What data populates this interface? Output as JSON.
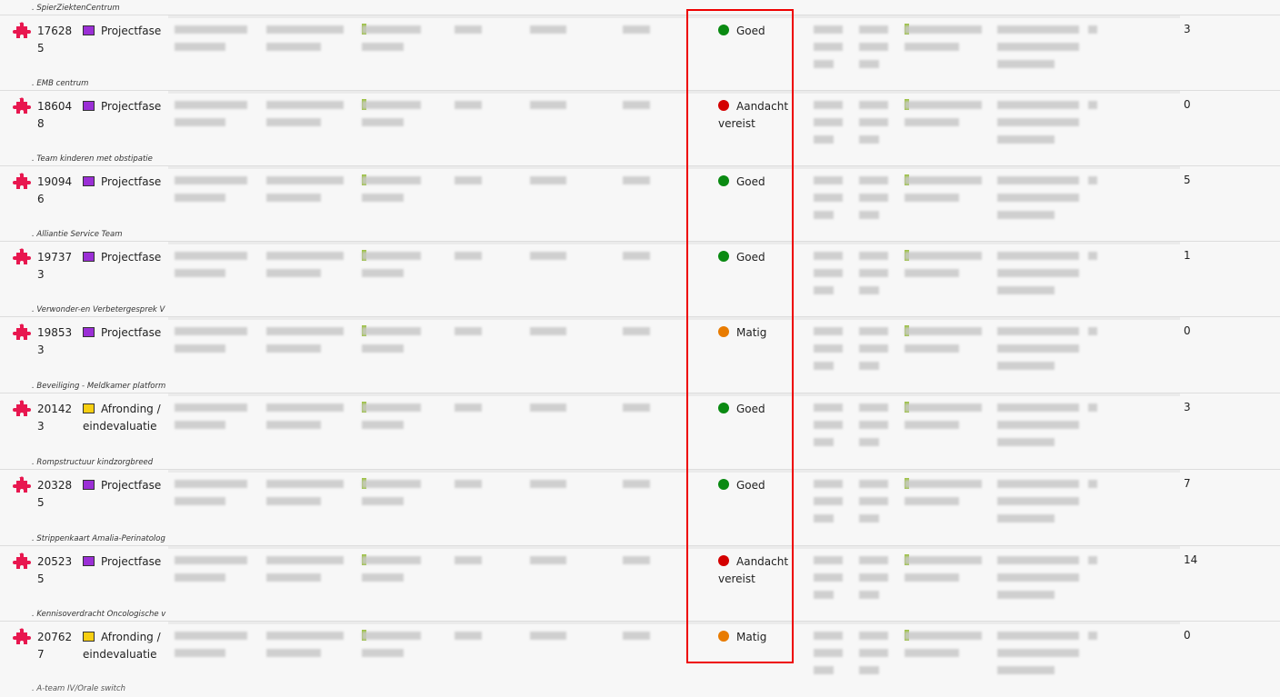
{
  "colors": {
    "accent": "#e8174f",
    "projectfase": "#9b2fd6",
    "afronding": "#f7cf12",
    "goed": "#0a8a12",
    "aandacht": "#d40000",
    "matig": "#e87b00",
    "highlight": "#e00000"
  },
  "rows": [
    {
      "group": ". SpierZiektenCentrum",
      "id": "176285",
      "phase": "Projectfase",
      "phase_color": "projectfase",
      "status": "Goed",
      "status_color": "goed",
      "count": "3"
    },
    {
      "group": ". EMB centrum",
      "id": "186048",
      "phase": "Projectfase",
      "phase_color": "projectfase",
      "status": "Aandacht vereist",
      "status_color": "aandacht",
      "count": "0"
    },
    {
      "group": ". Team kinderen met obstipatie",
      "id": "190946",
      "phase": "Projectfase",
      "phase_color": "projectfase",
      "status": "Goed",
      "status_color": "goed",
      "count": "5"
    },
    {
      "group": ". Alliantie Service Team",
      "id": "197373",
      "phase": "Projectfase",
      "phase_color": "projectfase",
      "status": "Goed",
      "status_color": "goed",
      "count": "1"
    },
    {
      "group": ". Verwonder-en Verbetergesprek V",
      "id": "198533",
      "phase": "Projectfase",
      "phase_color": "projectfase",
      "status": "Matig",
      "status_color": "matig",
      "count": "0"
    },
    {
      "group": ". Beveiliging - Meldkamer platform",
      "id": "201423",
      "phase": "Afronding / eindevaluatie",
      "phase_color": "afronding",
      "status": "Goed",
      "status_color": "goed",
      "count": "3"
    },
    {
      "group": ". Rompstructuur kindzorgbreed",
      "id": "203285",
      "phase": "Projectfase",
      "phase_color": "projectfase",
      "status": "Goed",
      "status_color": "goed",
      "count": "7"
    },
    {
      "group": ". Strippenkaart Amalia-Perinatolog",
      "id": "205235",
      "phase": "Projectfase",
      "phase_color": "projectfase",
      "status": "Aandacht vereist",
      "status_color": "aandacht",
      "count": "14"
    },
    {
      "group": ". Kennisoverdracht Oncologische v",
      "id": "207627",
      "phase": "Afronding / eindevaluatie",
      "phase_color": "afronding",
      "status": "Matig",
      "status_color": "matig",
      "count": "0"
    }
  ],
  "footer_group": ". A-team IV/Orale switch"
}
